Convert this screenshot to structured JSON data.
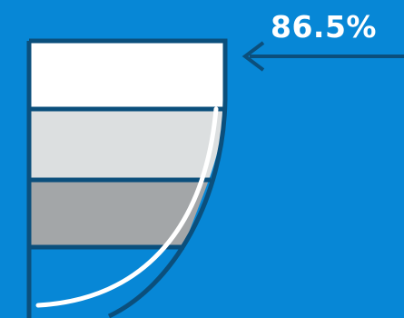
{
  "percentage_label": "86.5%",
  "colors": {
    "background": "#0787d6",
    "outline": "#0b4f7c",
    "band_top": "#ffffff",
    "band_second": "#dcdfe0",
    "band_third": "#a3a6a8",
    "curve": "#ffffff",
    "arrow": "#0b4f7c",
    "label": "#ffffff"
  }
}
